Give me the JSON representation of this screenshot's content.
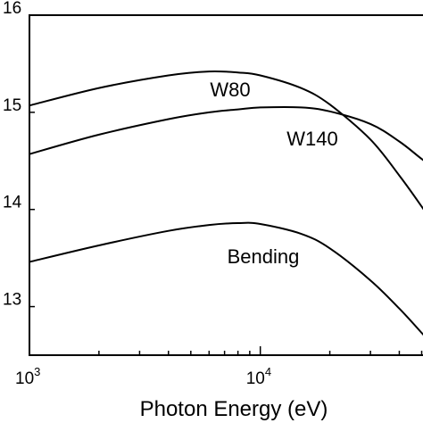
{
  "chart_data": {
    "type": "line",
    "title": "",
    "xlabel": "Photon Energy (eV)",
    "ylabel": "",
    "xscale": "log",
    "xlim": [
      1000,
      60000
    ],
    "ylim": [
      12.5,
      16
    ],
    "x_ticks": [
      {
        "value": 1000,
        "base": "10",
        "exp": "3"
      },
      {
        "value": 10000,
        "base": "10",
        "exp": "4"
      }
    ],
    "y_ticks": [
      {
        "value": 13,
        "label": "13"
      },
      {
        "value": 14,
        "label": "14"
      },
      {
        "value": 15,
        "label": "15"
      },
      {
        "value": 16,
        "label": "16"
      }
    ],
    "grid": false,
    "series": [
      {
        "name": "W80",
        "x": [
          1000,
          2000,
          4000,
          6000,
          8000,
          10000,
          15000,
          20000,
          30000,
          40000,
          50000,
          60000
        ],
        "y": [
          15.07,
          15.25,
          15.38,
          15.42,
          15.41,
          15.38,
          15.25,
          15.08,
          14.72,
          14.35,
          14.03,
          13.75
        ]
      },
      {
        "name": "W140",
        "x": [
          1000,
          2000,
          4000,
          6000,
          8000,
          10000,
          15000,
          20000,
          30000,
          40000,
          50000,
          60000
        ],
        "y": [
          14.57,
          14.77,
          14.93,
          15.0,
          15.03,
          15.05,
          15.05,
          15.01,
          14.88,
          14.7,
          14.52,
          14.38
        ]
      },
      {
        "name": "Bending",
        "x": [
          1000,
          2000,
          4000,
          6000,
          8000,
          10000,
          15000,
          20000,
          30000,
          40000,
          50000,
          60000
        ],
        "y": [
          13.46,
          13.63,
          13.78,
          13.84,
          13.86,
          13.85,
          13.75,
          13.6,
          13.27,
          12.98,
          12.73,
          12.52
        ]
      }
    ]
  }
}
